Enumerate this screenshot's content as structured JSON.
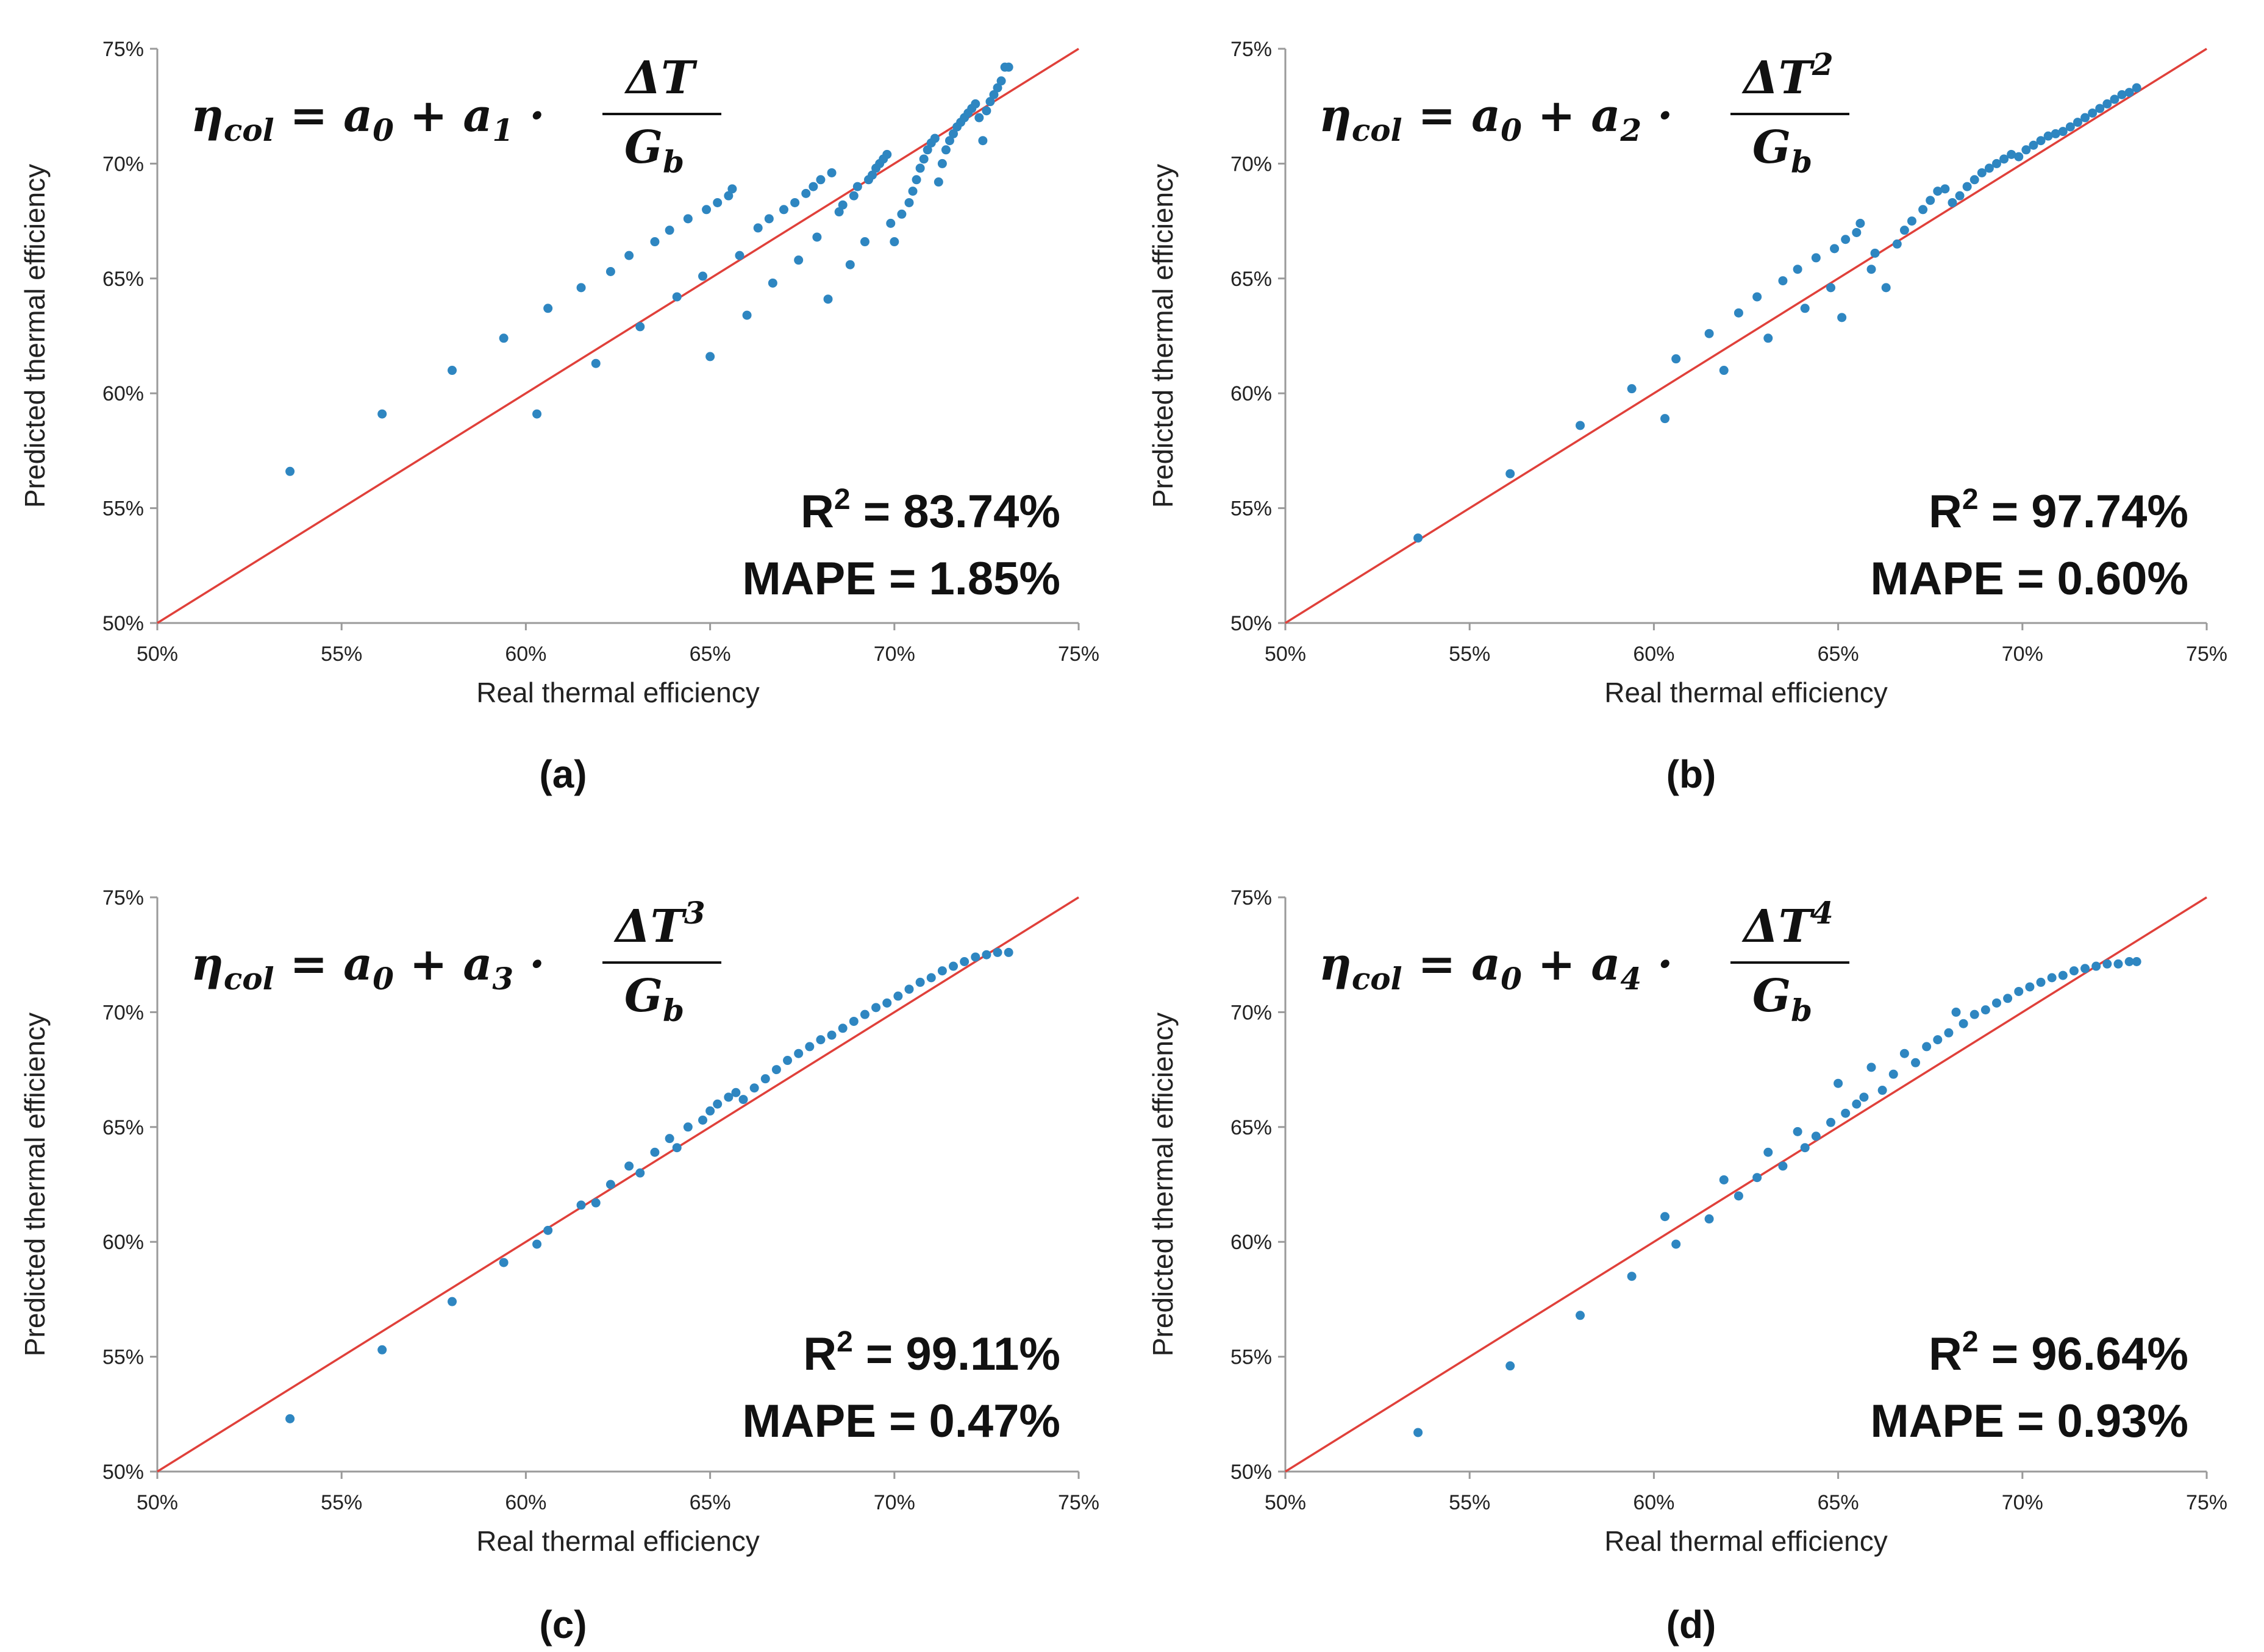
{
  "axis": {
    "xlabel": "Real thermal efficiency",
    "ylabel": "Predicted thermal efficiency",
    "ticks": [
      "50%",
      "55%",
      "60%",
      "65%",
      "70%",
      "75%"
    ],
    "range": [
      50,
      75
    ]
  },
  "colors": {
    "points": "#2e86c1",
    "line": "#e0403a",
    "axis": "#9a9a9a"
  },
  "chart_data": [
    {
      "type": "scatter",
      "panel_label": "(a)",
      "equation": {
        "a_coef": "a",
        "sub": "1",
        "numerator": "ΔT",
        "power": "",
        "denominator": "G",
        "den_sub": "b"
      },
      "r2_label": "R",
      "r2_value": " = 83.74%",
      "mape_text": "MAPE = 1.85%",
      "xlim": [
        50,
        75
      ],
      "ylim": [
        50,
        75
      ],
      "reference_line": "y = x",
      "x": [
        53.6,
        56.1,
        58.0,
        59.4,
        60.3,
        60.6,
        61.5,
        61.9,
        62.3,
        62.8,
        63.1,
        63.5,
        63.9,
        64.1,
        64.4,
        64.8,
        64.9,
        65.0,
        65.2,
        65.5,
        65.6,
        65.8,
        66.0,
        66.3,
        66.6,
        66.7,
        67.0,
        67.3,
        67.4,
        67.6,
        67.8,
        67.9,
        68.0,
        68.2,
        68.3,
        68.5,
        68.6,
        68.8,
        68.9,
        69.0,
        69.2,
        69.3,
        69.4,
        69.5,
        69.6,
        69.7,
        69.8,
        69.9,
        70.0,
        70.2,
        70.4,
        70.5,
        70.6,
        70.7,
        70.8,
        70.9,
        71.0,
        71.1,
        71.2,
        71.3,
        71.4,
        71.5,
        71.6,
        71.7,
        71.8,
        71.9,
        72.0,
        72.1,
        72.2,
        72.3,
        72.4,
        72.5,
        72.6,
        72.7,
        72.8,
        72.9,
        73.0,
        73.1
      ],
      "y": [
        56.6,
        59.1,
        61.0,
        62.4,
        59.1,
        63.7,
        64.6,
        61.3,
        65.3,
        66.0,
        62.9,
        66.6,
        67.1,
        64.2,
        67.6,
        65.1,
        68.0,
        61.6,
        68.3,
        68.6,
        68.9,
        66.0,
        63.4,
        67.2,
        67.6,
        64.8,
        68.0,
        68.3,
        65.8,
        68.7,
        69.0,
        66.8,
        69.3,
        64.1,
        69.6,
        67.9,
        68.2,
        65.6,
        68.6,
        69.0,
        66.6,
        69.3,
        69.5,
        69.8,
        70.0,
        70.2,
        70.4,
        67.4,
        66.6,
        67.8,
        68.3,
        68.8,
        69.3,
        69.8,
        70.2,
        70.6,
        70.9,
        71.1,
        69.2,
        70.0,
        70.6,
        71.0,
        71.3,
        71.6,
        71.8,
        72.0,
        72.2,
        72.4,
        72.6,
        72.0,
        71.0,
        72.3,
        72.7,
        73.0,
        73.3,
        73.6,
        74.2,
        74.2
      ]
    },
    {
      "type": "scatter",
      "panel_label": "(b)",
      "equation": {
        "a_coef": "a",
        "sub": "2",
        "numerator": "ΔT",
        "power": "2",
        "denominator": "G",
        "den_sub": "b"
      },
      "r2_label": "R",
      "r2_value": " = 97.74%",
      "mape_text": "MAPE = 0.60%",
      "xlim": [
        50,
        75
      ],
      "ylim": [
        50,
        75
      ],
      "reference_line": "y = x",
      "x": [
        53.6,
        56.1,
        58.0,
        59.4,
        60.3,
        60.6,
        61.5,
        61.9,
        62.3,
        62.8,
        63.1,
        63.5,
        63.9,
        64.1,
        64.4,
        64.8,
        64.9,
        65.1,
        65.2,
        65.5,
        65.6,
        65.9,
        66.0,
        66.3,
        66.6,
        66.8,
        67.0,
        67.3,
        67.5,
        67.7,
        67.9,
        68.1,
        68.3,
        68.5,
        68.7,
        68.9,
        69.1,
        69.3,
        69.5,
        69.7,
        69.9,
        70.1,
        70.3,
        70.5,
        70.7,
        70.9,
        71.1,
        71.3,
        71.5,
        71.7,
        71.9,
        72.1,
        72.3,
        72.5,
        72.7,
        72.9,
        73.1
      ],
      "y": [
        53.7,
        56.5,
        58.6,
        60.2,
        58.9,
        61.5,
        62.6,
        61.0,
        63.5,
        64.2,
        62.4,
        64.9,
        65.4,
        63.7,
        65.9,
        64.6,
        66.3,
        63.3,
        66.7,
        67.0,
        67.4,
        65.4,
        66.1,
        64.6,
        66.5,
        67.1,
        67.5,
        68.0,
        68.4,
        68.8,
        68.9,
        68.3,
        68.6,
        69.0,
        69.3,
        69.6,
        69.8,
        70.0,
        70.2,
        70.4,
        70.3,
        70.6,
        70.8,
        71.0,
        71.2,
        71.3,
        71.4,
        71.6,
        71.8,
        72.0,
        72.2,
        72.4,
        72.6,
        72.8,
        73.0,
        73.1,
        73.3
      ]
    },
    {
      "type": "scatter",
      "panel_label": "(c)",
      "equation": {
        "a_coef": "a",
        "sub": "3",
        "numerator": "ΔT",
        "power": "3",
        "denominator": "G",
        "den_sub": "b"
      },
      "r2_label": "R",
      "r2_value": " = 99.11%",
      "mape_text": "MAPE = 0.47%",
      "xlim": [
        50,
        75
      ],
      "ylim": [
        50,
        75
      ],
      "reference_line": "y = x",
      "x": [
        53.6,
        56.1,
        58.0,
        59.4,
        60.3,
        60.6,
        61.5,
        61.9,
        62.3,
        62.8,
        63.1,
        63.5,
        63.9,
        64.1,
        64.4,
        64.8,
        65.0,
        65.2,
        65.5,
        65.7,
        65.9,
        66.2,
        66.5,
        66.8,
        67.1,
        67.4,
        67.7,
        68.0,
        68.3,
        68.6,
        68.9,
        69.2,
        69.5,
        69.8,
        70.1,
        70.4,
        70.7,
        71.0,
        71.3,
        71.6,
        71.9,
        72.2,
        72.5,
        72.8,
        73.1
      ],
      "y": [
        52.3,
        55.3,
        57.4,
        59.1,
        59.9,
        60.5,
        61.6,
        61.7,
        62.5,
        63.3,
        63.0,
        63.9,
        64.5,
        64.1,
        65.0,
        65.3,
        65.7,
        66.0,
        66.3,
        66.5,
        66.2,
        66.7,
        67.1,
        67.5,
        67.9,
        68.2,
        68.5,
        68.8,
        69.0,
        69.3,
        69.6,
        69.9,
        70.2,
        70.4,
        70.7,
        71.0,
        71.3,
        71.5,
        71.8,
        72.0,
        72.2,
        72.4,
        72.5,
        72.6,
        72.6
      ]
    },
    {
      "type": "scatter",
      "panel_label": "(d)",
      "equation": {
        "a_coef": "a",
        "sub": "4",
        "numerator": "ΔT",
        "power": "4",
        "denominator": "G",
        "den_sub": "b"
      },
      "r2_label": "R",
      "r2_value": " = 96.64%",
      "mape_text": "MAPE = 0.93%",
      "xlim": [
        50,
        75
      ],
      "ylim": [
        50,
        75
      ],
      "reference_line": "y = x",
      "x": [
        53.6,
        56.1,
        58.0,
        59.4,
        60.3,
        60.6,
        61.5,
        61.9,
        62.3,
        62.8,
        63.1,
        63.5,
        63.9,
        64.1,
        64.4,
        64.8,
        65.0,
        65.2,
        65.5,
        65.7,
        65.9,
        66.2,
        66.5,
        66.8,
        67.1,
        67.4,
        67.7,
        68.0,
        68.2,
        68.4,
        68.7,
        69.0,
        69.3,
        69.6,
        69.9,
        70.2,
        70.5,
        70.8,
        71.1,
        71.4,
        71.7,
        72.0,
        72.3,
        72.6,
        72.9,
        73.1
      ],
      "y": [
        51.7,
        54.6,
        56.8,
        58.5,
        61.1,
        59.9,
        61.0,
        62.7,
        62.0,
        62.8,
        63.9,
        63.3,
        64.8,
        64.1,
        64.6,
        65.2,
        66.9,
        65.6,
        66.0,
        66.3,
        67.6,
        66.6,
        67.3,
        68.2,
        67.8,
        68.5,
        68.8,
        69.1,
        70.0,
        69.5,
        69.9,
        70.1,
        70.4,
        70.6,
        70.9,
        71.1,
        71.3,
        71.5,
        71.6,
        71.8,
        71.9,
        72.0,
        72.1,
        72.1,
        72.2,
        72.2
      ]
    }
  ]
}
